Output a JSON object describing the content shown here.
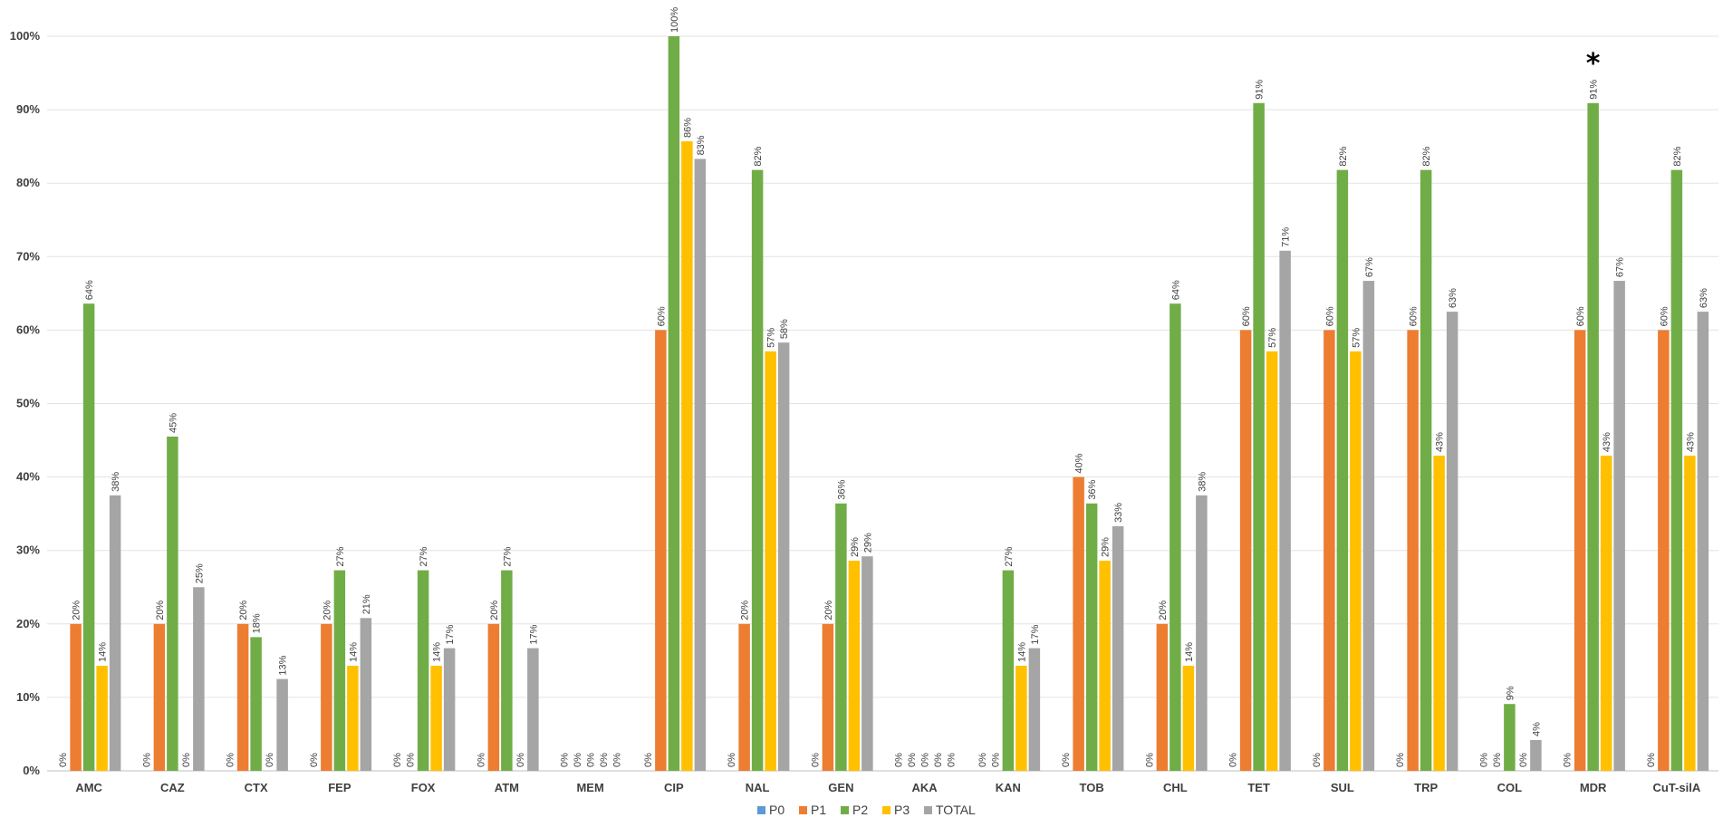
{
  "chart_data": {
    "type": "bar",
    "categories": [
      "AMC",
      "CAZ",
      "CTX",
      "FEP",
      "FOX",
      "ATM",
      "MEM",
      "CIP",
      "NAL",
      "GEN",
      "AKA",
      "KAN",
      "TOB",
      "CHL",
      "TET",
      "SUL",
      "TRP",
      "COL",
      "MDR",
      "CuT-silA"
    ],
    "series": [
      {
        "name": "P0",
        "color": "#5b9bd5",
        "values": [
          0,
          0,
          0,
          0,
          0,
          0,
          0,
          0,
          0,
          0,
          0,
          0,
          0,
          0,
          0,
          0,
          0,
          0,
          0,
          0
        ]
      },
      {
        "name": "P1",
        "color": "#ed7d31",
        "values": [
          20,
          20,
          20,
          20,
          0,
          20,
          0,
          60,
          20,
          20,
          0,
          0,
          40,
          20,
          60,
          60,
          60,
          0,
          60,
          60
        ]
      },
      {
        "name": "P2",
        "color": "#70ad47",
        "values": [
          64,
          45,
          18,
          27,
          27,
          27,
          0,
          100,
          82,
          36,
          0,
          27,
          36,
          64,
          91,
          82,
          82,
          9,
          91,
          82
        ]
      },
      {
        "name": "P3",
        "color": "#ffc000",
        "values": [
          14,
          0,
          0,
          14,
          14,
          0,
          0,
          86,
          57,
          29,
          0,
          14,
          29,
          14,
          57,
          57,
          43,
          0,
          43,
          43
        ]
      },
      {
        "name": "TOTAL",
        "color": "#a5a5a5",
        "values": [
          38,
          25,
          13,
          21,
          17,
          17,
          0,
          83,
          58,
          29,
          0,
          17,
          33,
          38,
          71,
          67,
          63,
          4,
          67,
          63
        ]
      }
    ],
    "bar_heights_exact": {
      "P1": [
        20,
        20,
        20,
        20,
        0,
        20,
        0,
        60,
        20,
        20,
        0,
        0,
        40,
        20,
        60,
        60,
        60,
        0,
        60,
        60
      ],
      "P2": [
        63.6,
        45.5,
        18.2,
        27.3,
        27.3,
        27.3,
        0,
        100,
        81.8,
        36.4,
        0,
        27.3,
        36.4,
        63.6,
        90.9,
        81.8,
        81.8,
        9.1,
        90.9,
        81.8
      ],
      "P3": [
        14.3,
        0,
        0,
        14.3,
        14.3,
        0,
        0,
        85.7,
        57.1,
        28.6,
        0,
        14.3,
        28.6,
        14.3,
        57.1,
        57.1,
        42.9,
        0,
        42.9,
        42.9
      ],
      "TOTAL": [
        37.5,
        25,
        12.5,
        20.8,
        16.7,
        16.7,
        0,
        83.3,
        58.3,
        29.2,
        0,
        16.7,
        33.3,
        37.5,
        70.8,
        66.7,
        62.5,
        4.2,
        66.7,
        62.5
      ]
    },
    "data_labels": {
      "P0": [
        "0%",
        "0%",
        "0%",
        "0%",
        "0%",
        "0%",
        "0%",
        "0%",
        "0%",
        "0%",
        "0%",
        "0%",
        "0%",
        "0%",
        "0%",
        "0%",
        "0%",
        "0%",
        "0%",
        "0%"
      ],
      "P1": [
        "20%",
        "20%",
        "20%",
        "20%",
        "0%",
        "20%",
        "0%",
        "60%",
        "20%",
        "20%",
        "0%",
        "0%",
        "40%",
        "20%",
        "60%",
        "60%",
        "60%",
        "0%",
        "60%",
        "60%"
      ],
      "P2": [
        "64%",
        "45%",
        "18%",
        "27%",
        "27%",
        "27%",
        "0%",
        "100%",
        "82%",
        "36%",
        "0%",
        "27%",
        "36%",
        "64%",
        "91%",
        "82%",
        "82%",
        "9%",
        "91%",
        "82%"
      ],
      "P3": [
        "14%",
        "0%",
        "0%",
        "14%",
        "14%",
        "0%",
        "0%",
        "86%",
        "57%",
        "29%",
        "0%",
        "14%",
        "29%",
        "14%",
        "57%",
        "57%",
        "43%",
        "0%",
        "43%",
        "43%"
      ],
      "TOTAL": [
        "38%",
        "25%",
        "13%",
        "21%",
        "17%",
        "17%",
        "0%",
        "83%",
        "58%",
        "29%",
        "0%",
        "17%",
        "33%",
        "38%",
        "71%",
        "67%",
        "63%",
        "4%",
        "67%",
        "63%"
      ]
    },
    "ylim": [
      0,
      100
    ],
    "y_ticks": [
      "0%",
      "10%",
      "20%",
      "30%",
      "40%",
      "50%",
      "60%",
      "70%",
      "80%",
      "90%",
      "100%"
    ],
    "grid": true,
    "legend_position": "bottom",
    "annotation": {
      "text": "*",
      "category": "MDR"
    },
    "title": "",
    "xlabel": "",
    "ylabel": ""
  }
}
